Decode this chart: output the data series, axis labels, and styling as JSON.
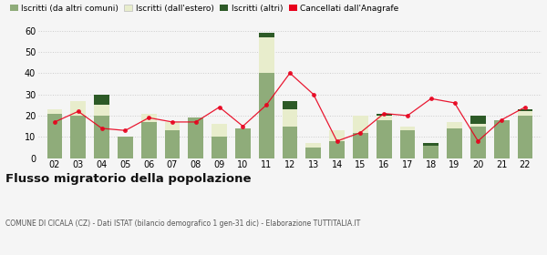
{
  "years": [
    "02",
    "03",
    "04",
    "05",
    "06",
    "07",
    "08",
    "09",
    "10",
    "11",
    "12",
    "13",
    "14",
    "15",
    "16",
    "17",
    "18",
    "19",
    "20",
    "21",
    "22"
  ],
  "iscritti_altri_comuni": [
    21,
    20,
    20,
    10,
    17,
    13,
    19,
    10,
    14,
    40,
    15,
    5,
    8,
    12,
    18,
    13,
    6,
    14,
    15,
    18,
    20
  ],
  "iscritti_estero": [
    2,
    7,
    5,
    0,
    4,
    4,
    0,
    6,
    0,
    17,
    8,
    2,
    5,
    8,
    2,
    2,
    0,
    3,
    1,
    0,
    2
  ],
  "iscritti_altri": [
    0,
    0,
    5,
    0,
    0,
    0,
    0,
    0,
    0,
    2,
    4,
    0,
    0,
    0,
    1,
    0,
    1,
    0,
    4,
    0,
    1
  ],
  "cancellati": [
    17,
    22,
    14,
    13,
    19,
    17,
    17,
    24,
    15,
    25,
    40,
    30,
    8,
    12,
    21,
    20,
    28,
    26,
    8,
    18,
    24
  ],
  "color_altri_comuni": "#8fac7a",
  "color_estero": "#e8edcc",
  "color_altri": "#2d5a27",
  "color_cancellati": "#e8001c",
  "ylim": [
    0,
    60
  ],
  "yticks": [
    0,
    10,
    20,
    30,
    40,
    50,
    60
  ],
  "title": "Flusso migratorio della popolazione",
  "subtitle": "COMUNE DI CICALA (CZ) - Dati ISTAT (bilancio demografico 1 gen-31 dic) - Elaborazione TUTTITALIA.IT",
  "legend_labels": [
    "Iscritti (da altri comuni)",
    "Iscritti (dall'estero)",
    "Iscritti (altri)",
    "Cancellati dall'Anagrafe"
  ],
  "background_color": "#f5f5f5",
  "grid_color": "#cccccc"
}
